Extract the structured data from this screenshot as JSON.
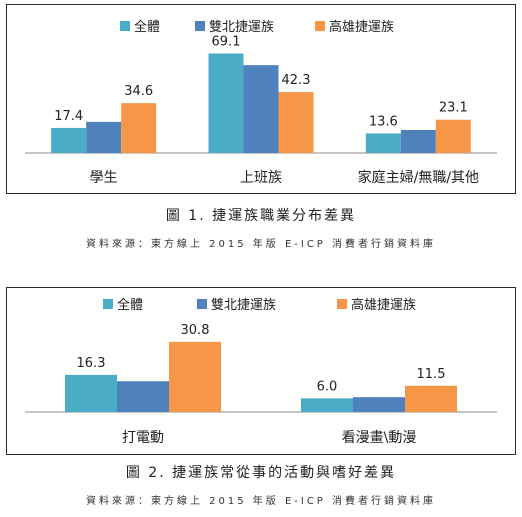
{
  "colors": {
    "all": "#4bacc6",
    "north": "#4f81bd",
    "kaohsiung": "#f79646"
  },
  "chart_data": [
    {
      "type": "bar",
      "categories": [
        "學生",
        "上班族",
        "家庭主婦/無職/其他"
      ],
      "series": [
        {
          "name": "全體",
          "values": [
            17.4,
            69.1,
            13.6
          ]
        },
        {
          "name": "雙北捷運族",
          "values": [
            21.6,
            61.0,
            16.0
          ]
        },
        {
          "name": "高雄捷運族",
          "values": [
            34.6,
            42.3,
            23.1
          ]
        }
      ],
      "labeled_series": [
        0,
        2
      ],
      "title": "",
      "xlabel": "",
      "ylabel": "",
      "ylim": [
        0,
        75
      ],
      "grid": false,
      "legend": "top"
    },
    {
      "type": "bar",
      "categories": [
        "打電動",
        "看漫畫\\動漫"
      ],
      "series": [
        {
          "name": "全體",
          "values": [
            16.3,
            6.0
          ]
        },
        {
          "name": "雙北捷運族",
          "values": [
            13.5,
            6.5
          ]
        },
        {
          "name": "高雄捷運族",
          "values": [
            30.8,
            11.5
          ]
        }
      ],
      "labeled_series": [
        0,
        2
      ],
      "title": "",
      "xlabel": "",
      "ylabel": "",
      "ylim": [
        0,
        36
      ],
      "grid": false,
      "legend": "top"
    }
  ],
  "captions": {
    "fig1_title": "圖 1. 捷運族職業分布差異",
    "fig1_source": "資料來源：東方線上 2015 年版 E-ICP 消費者行銷資料庫",
    "fig2_title": "圖 2. 捷運族常從事的活動與嗜好差異",
    "fig2_source": "資料來源：東方線上 2015 年版 E-ICP 消費者行銷資料庫"
  }
}
